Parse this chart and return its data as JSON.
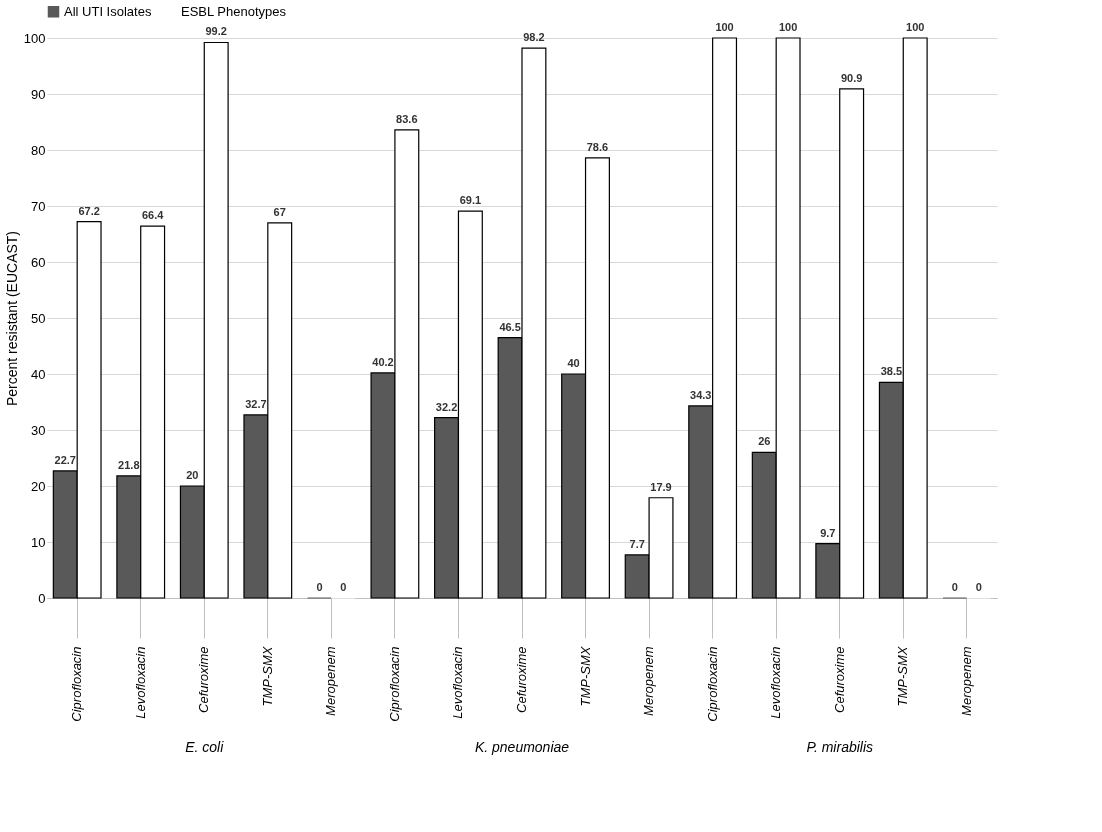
{
  "chart_data": {
    "type": "bar",
    "ylabel": "Percent resistant (EUCAST)",
    "categories": [
      "Ciprofloxacin",
      "Levofloxacin",
      "Cefuroxime",
      "TMP-SMX",
      "Meropenem",
      "Ciprofloxacin",
      "Levofloxacin",
      "Cefuroxime",
      "TMP-SMX",
      "Meropenem",
      "Ciprofloxacin",
      "Levofloxacin",
      "Cefuroxime",
      "TMP-SMX",
      "Meropenem"
    ],
    "series": [
      {
        "name": "All UTI Isolates",
        "color": "#595959",
        "values": [
          22.7,
          21.8,
          20,
          32.7,
          0,
          40.2,
          32.2,
          46.5,
          40,
          7.7,
          34.3,
          26,
          9.7,
          38.5,
          0
        ]
      },
      {
        "name": "ESBL Phenotypes",
        "color": "#ffffff",
        "values": [
          67.2,
          66.4,
          99.2,
          67,
          0,
          83.6,
          69.1,
          98.2,
          78.6,
          17.9,
          100,
          100,
          90.9,
          100,
          0
        ]
      }
    ],
    "annotations": [
      "E. coli",
      "K. pneumoniae",
      "P. mirabilis"
    ],
    "ylim": [
      0,
      100
    ],
    "yticks": [
      0,
      10,
      20,
      30,
      40,
      50,
      60,
      70,
      80,
      90,
      100
    ],
    "grid": "y",
    "legend": "top",
    "data_labels": true
  }
}
